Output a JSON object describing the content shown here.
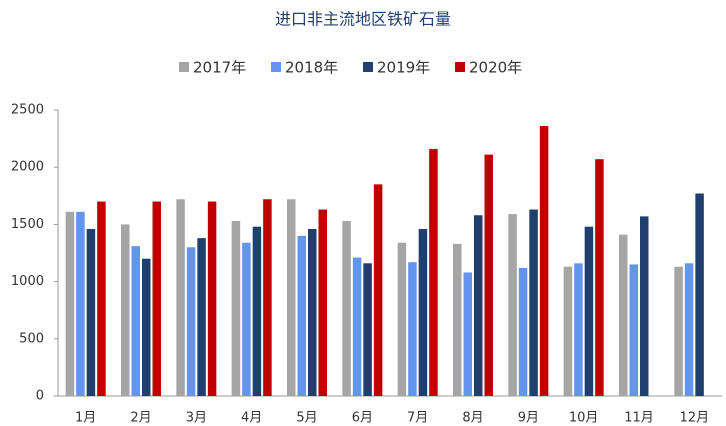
{
  "chart_data": {
    "type": "bar",
    "title": "进口非主流地区铁矿石量",
    "categories": [
      "1月",
      "2月",
      "3月",
      "4月",
      "5月",
      "6月",
      "7月",
      "8月",
      "9月",
      "10月",
      "11月",
      "12月"
    ],
    "series": [
      {
        "name": "2017年",
        "color": "#a5a5a5",
        "values": [
          1610,
          1500,
          1720,
          1530,
          1720,
          1530,
          1340,
          1330,
          1590,
          1130,
          1410,
          1130
        ]
      },
      {
        "name": "2018年",
        "color": "#6495ed",
        "values": [
          1610,
          1310,
          1300,
          1340,
          1400,
          1210,
          1170,
          1080,
          1120,
          1160,
          1150,
          1160
        ]
      },
      {
        "name": "2019年",
        "color": "#1f3f6e",
        "values": [
          1460,
          1200,
          1380,
          1480,
          1460,
          1160,
          1460,
          1580,
          1630,
          1480,
          1570,
          1770
        ]
      },
      {
        "name": "2020年",
        "color": "#c00000",
        "values": [
          1700,
          1700,
          1700,
          1720,
          1630,
          1850,
          2160,
          2110,
          2360,
          2070,
          null,
          null
        ]
      }
    ],
    "ylim": [
      0,
      2500
    ],
    "yticks": [
      0,
      500,
      1000,
      1500,
      2000,
      2500
    ],
    "grid": false,
    "legend": "top"
  }
}
